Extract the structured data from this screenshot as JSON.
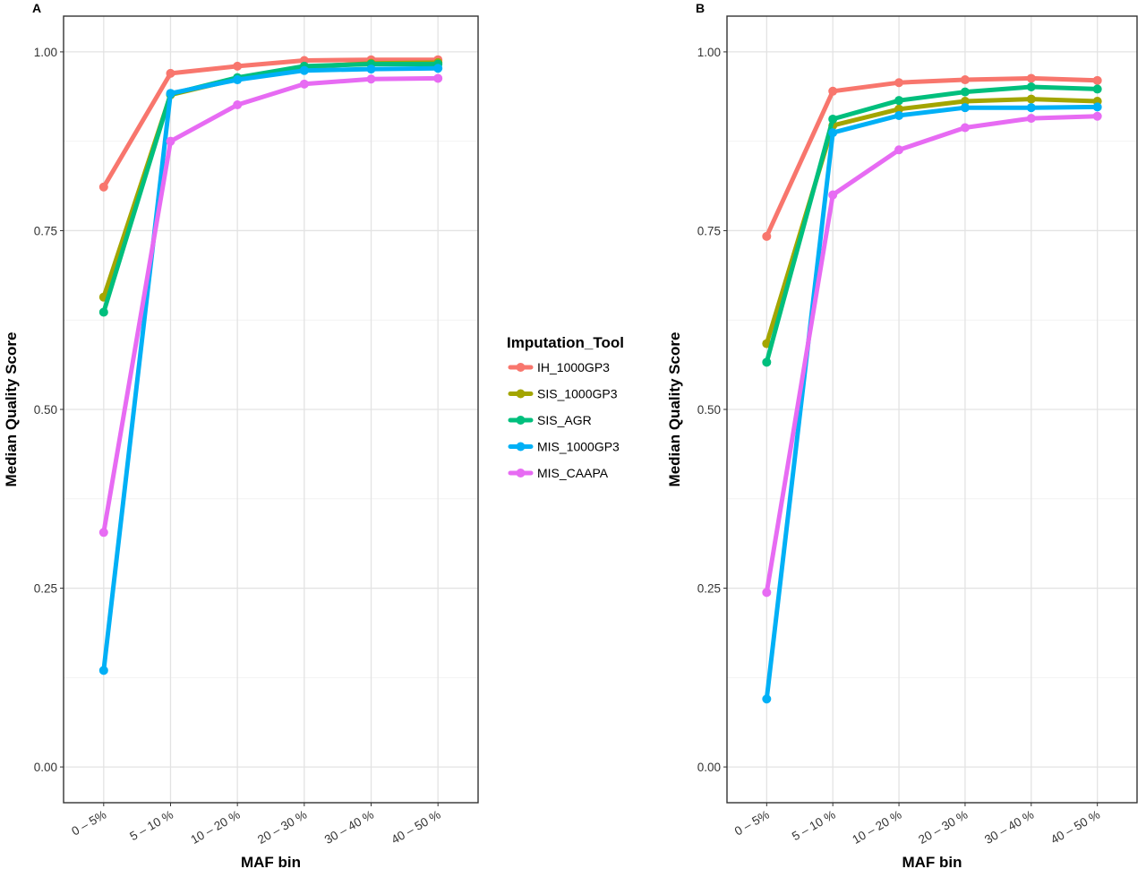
{
  "chart_data": [
    {
      "type": "line",
      "panel_label": "A",
      "xlabel": "MAF bin",
      "ylabel": "Median Quality Score",
      "categories": [
        "0 – 5%",
        "5 – 10 %",
        "10 – 20 %",
        "20 – 30 %",
        "30 – 40 %",
        "40 – 50 %"
      ],
      "ylim": [
        -0.05,
        1.05
      ],
      "yticks": [
        0.0,
        0.25,
        0.5,
        0.75,
        1.0
      ],
      "ytick_labels": [
        "0.00",
        "0.25",
        "0.50",
        "0.75",
        "1.00"
      ],
      "grid": true,
      "series": [
        {
          "name": "IH_1000GP3",
          "color": "#F8766D",
          "values": [
            0.811,
            0.97,
            0.98,
            0.988,
            0.989,
            0.989
          ]
        },
        {
          "name": "SIS_1000GP3",
          "color": "#A3A500",
          "values": [
            0.657,
            0.94,
            0.962,
            0.979,
            0.984,
            0.985
          ]
        },
        {
          "name": "SIS_AGR",
          "color": "#00BF7D",
          "values": [
            0.636,
            0.941,
            0.964,
            0.98,
            0.983,
            0.983
          ]
        },
        {
          "name": "MIS_1000GP3",
          "color": "#00B0F6",
          "values": [
            0.135,
            0.942,
            0.961,
            0.974,
            0.976,
            0.977
          ]
        },
        {
          "name": "MIS_CAAPA",
          "color": "#E76BF3",
          "values": [
            0.328,
            0.875,
            0.926,
            0.955,
            0.962,
            0.963
          ]
        }
      ]
    },
    {
      "type": "line",
      "panel_label": "B",
      "xlabel": "MAF bin",
      "ylabel": "Median Quality Score",
      "categories": [
        "0 – 5%",
        "5 – 10 %",
        "10 – 20 %",
        "20 – 30 %",
        "30 – 40 %",
        "40 – 50 %"
      ],
      "ylim": [
        -0.05,
        1.05
      ],
      "yticks": [
        0.0,
        0.25,
        0.5,
        0.75,
        1.0
      ],
      "ytick_labels": [
        "0.00",
        "0.25",
        "0.50",
        "0.75",
        "1.00"
      ],
      "grid": true,
      "series": [
        {
          "name": "IH_1000GP3",
          "color": "#F8766D",
          "values": [
            0.742,
            0.945,
            0.957,
            0.961,
            0.963,
            0.96
          ]
        },
        {
          "name": "SIS_1000GP3",
          "color": "#A3A500",
          "values": [
            0.592,
            0.897,
            0.92,
            0.931,
            0.934,
            0.931
          ]
        },
        {
          "name": "SIS_AGR",
          "color": "#00BF7D",
          "values": [
            0.566,
            0.906,
            0.932,
            0.944,
            0.951,
            0.948
          ]
        },
        {
          "name": "MIS_1000GP3",
          "color": "#00B0F6",
          "values": [
            0.095,
            0.887,
            0.911,
            0.922,
            0.922,
            0.923
          ]
        },
        {
          "name": "MIS_CAAPA",
          "color": "#E76BF3",
          "values": [
            0.244,
            0.8,
            0.863,
            0.894,
            0.907,
            0.91
          ]
        }
      ]
    }
  ],
  "legend": {
    "title": "Imputation_Tool",
    "placement": "center, between panels",
    "items": [
      {
        "label": "IH_1000GP3",
        "color": "#F8766D"
      },
      {
        "label": "SIS_1000GP3",
        "color": "#A3A500"
      },
      {
        "label": "SIS_AGR",
        "color": "#00BF7D"
      },
      {
        "label": "MIS_1000GP3",
        "color": "#00B0F6"
      },
      {
        "label": "MIS_CAAPA",
        "color": "#E76BF3"
      }
    ]
  }
}
